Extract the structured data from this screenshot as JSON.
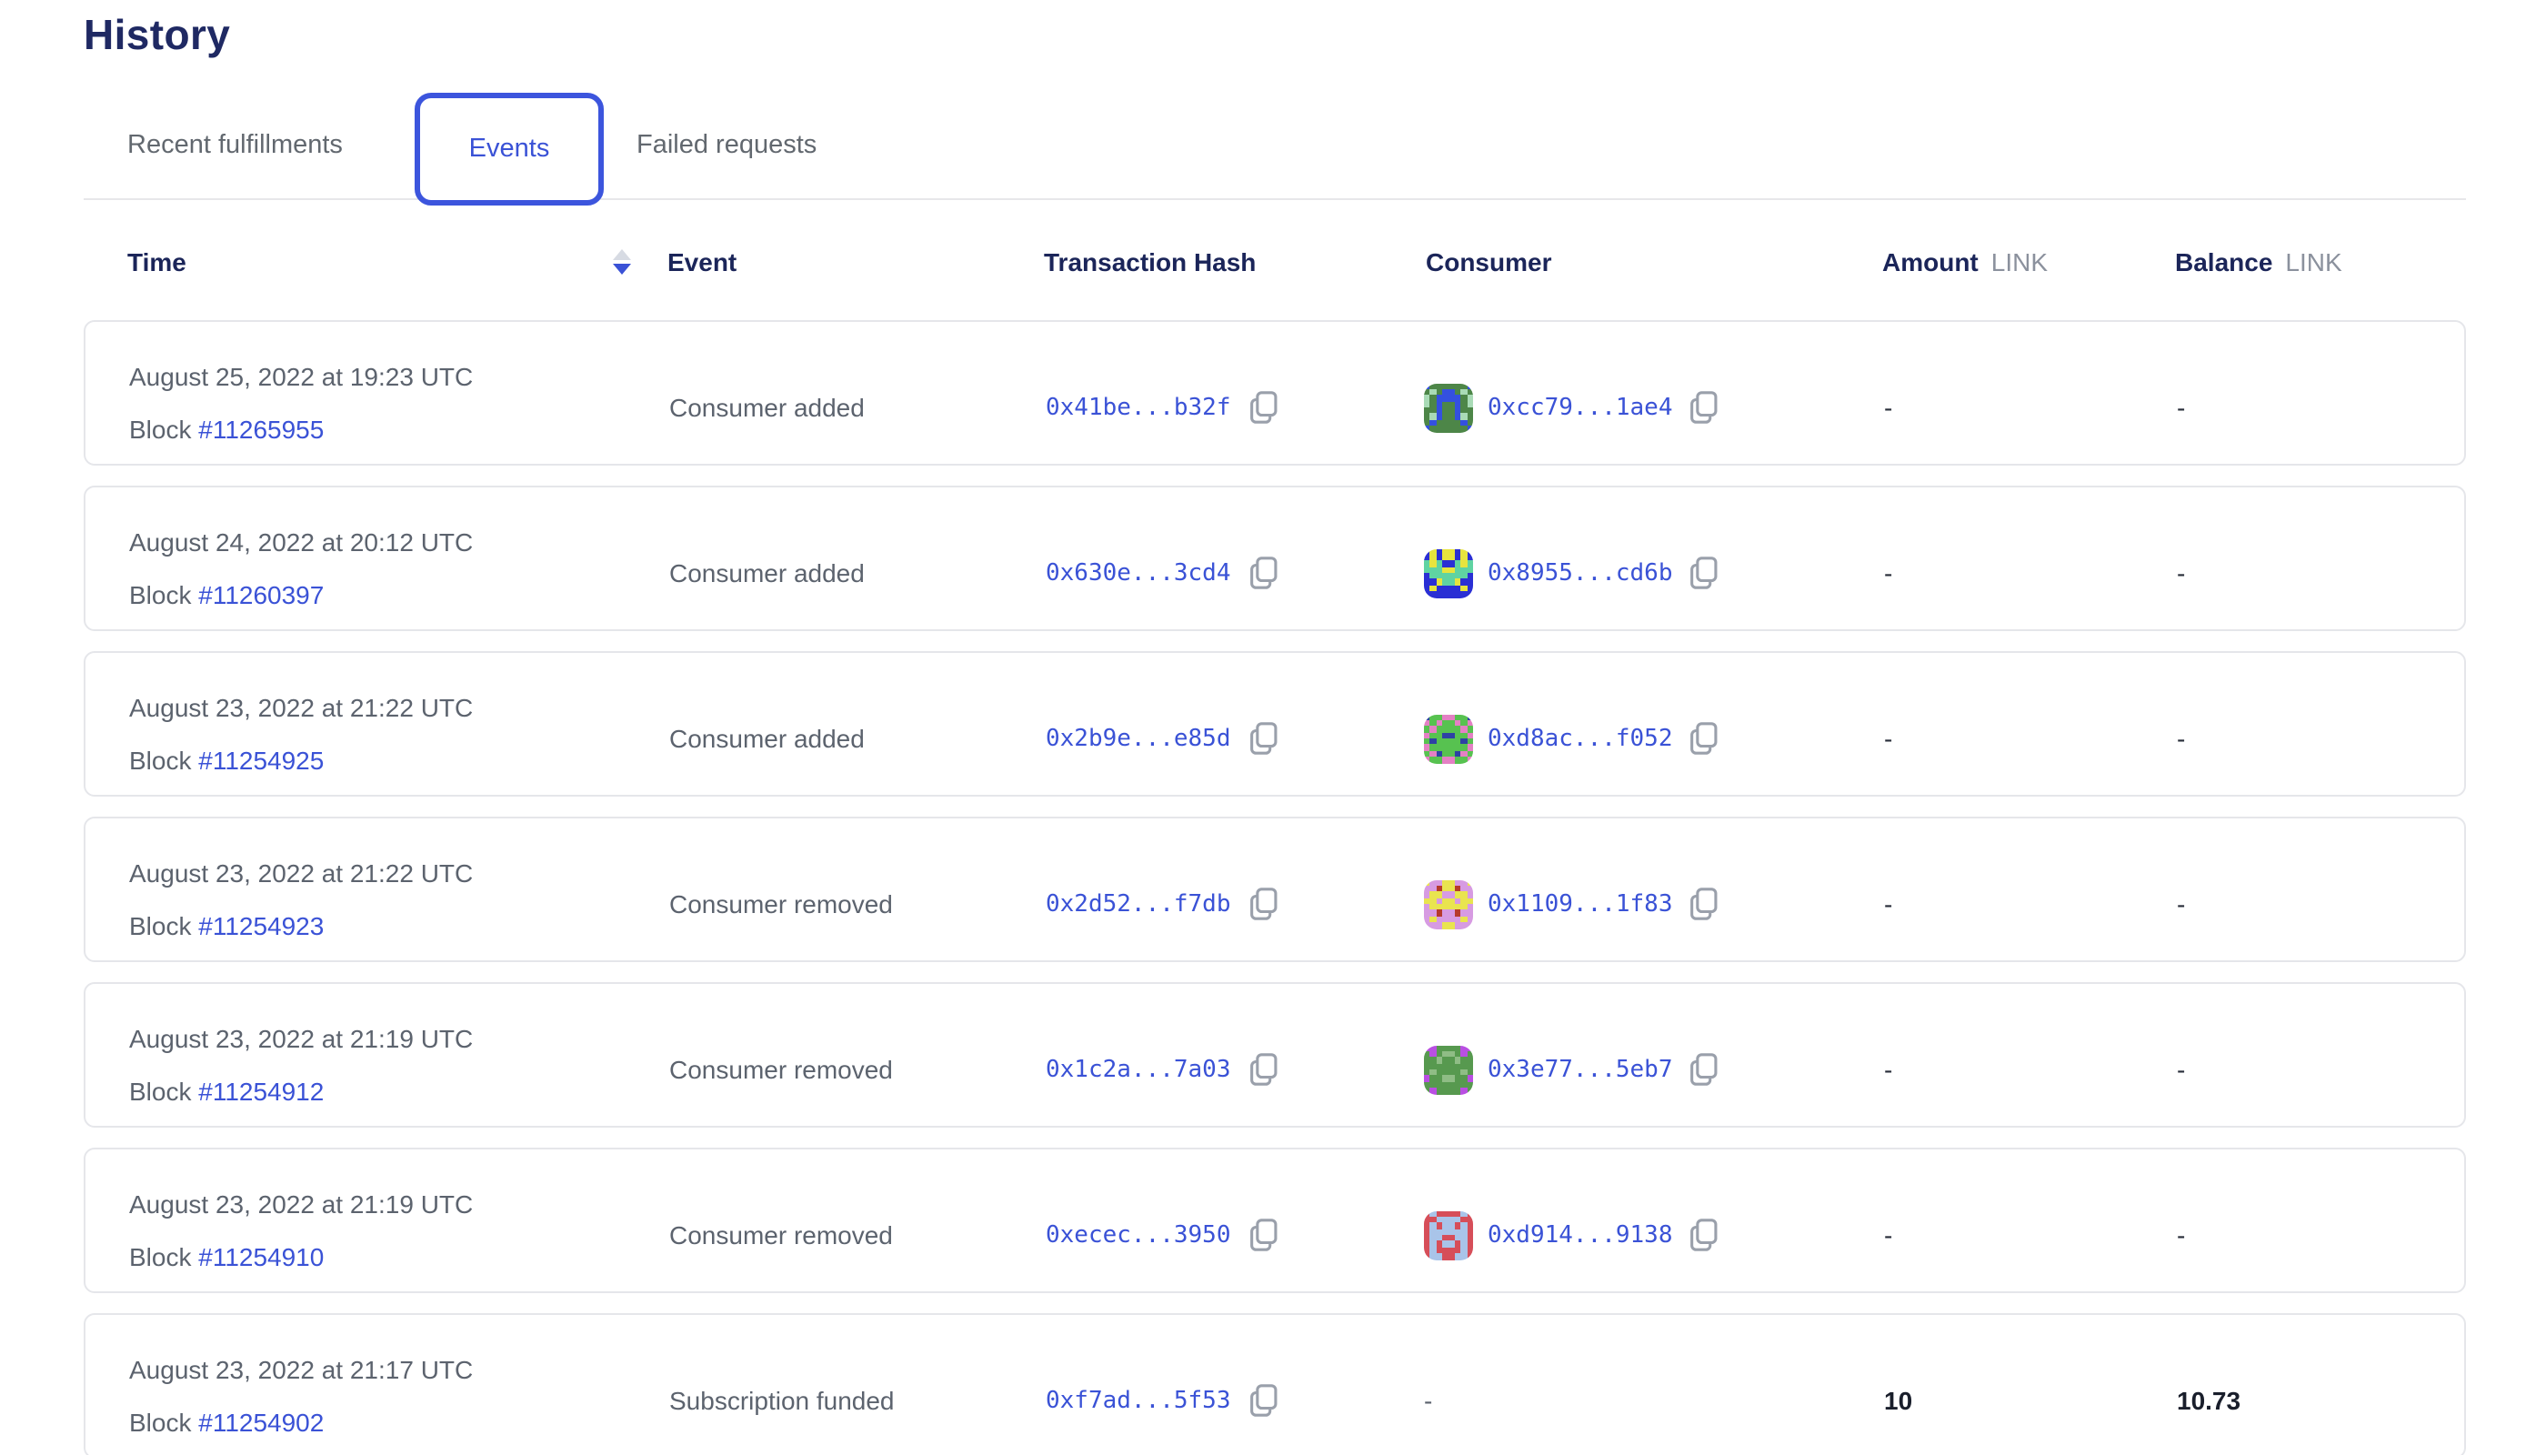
{
  "page": {
    "title": "History"
  },
  "tabs": {
    "items": [
      {
        "label": "Recent fulfillments",
        "active": false
      },
      {
        "label": "Events",
        "active": true
      },
      {
        "label": "Failed requests",
        "active": false
      }
    ]
  },
  "table": {
    "header": {
      "time": "Time",
      "event": "Event",
      "transaction_hash": "Transaction Hash",
      "consumer": "Consumer",
      "amount": "Amount",
      "balance": "Balance",
      "unit": "LINK",
      "sort": {
        "column": "Time",
        "direction": "descending"
      }
    },
    "rows": [
      {
        "date": "August 25, 2022 at 19:23 UTC",
        "block_label": "Block",
        "block_number": "#11265955",
        "event": "Consumer added",
        "tx_hash": "0x41be...b32f",
        "consumer": {
          "address": "0xcc79...1ae4",
          "avatar": {
            "palette": {
              "g": "#4d8648",
              "b": "#3450e0",
              "m": "#a9dbb6"
            },
            "pixels": [
              "bggggggb",
              "gmgbbgmg",
              "mgbbbbgm",
              "mgbggbgm",
              "ggbggbgg",
              "gmbggbmg",
              "gbggggbg",
              "bggggggb"
            ]
          }
        },
        "amount": "-",
        "balance": "-"
      },
      {
        "date": "August 24, 2022 at 20:12 UTC",
        "block_label": "Block",
        "block_number": "#11260397",
        "event": "Consumer added",
        "tx_hash": "0x630e...3cd4",
        "consumer": {
          "address": "0x8955...cd6b",
          "avatar": {
            "palette": {
              "B": "#2a2fd4",
              "Y": "#e7e43e",
              "T": "#5fd3a2"
            },
            "pixels": [
              "BYBYYBYB",
              "BYBYYBYB",
              "TYTBBTYT",
              "TTTYYTTT",
              "BTTTTTTB",
              "BBYTTYBB",
              "BYBBBBYB",
              "BBBBBBBB"
            ]
          }
        },
        "amount": "-",
        "balance": "-"
      },
      {
        "date": "August 23, 2022 at 21:22 UTC",
        "block_label": "Block",
        "block_number": "#11254925",
        "event": "Consumer added",
        "tx_hash": "0x2b9e...e85d",
        "consumer": {
          "address": "0xd8ac...f052",
          "avatar": {
            "palette": {
              "P": "#e480c4",
              "G": "#57c250",
              "N": "#2e42a4"
            },
            "pixels": [
              "NGGPPGGN",
              "PGPGGPGP",
              "GPGGGGPG",
              "PGGNNGGP",
              "GNGGGGNG",
              "PGGGGGGP",
              "GPNGGNPG",
              "PGGPPGGP"
            ]
          }
        },
        "amount": "-",
        "balance": "-"
      },
      {
        "date": "August 23, 2022 at 21:22 UTC",
        "block_label": "Block",
        "block_number": "#11254923",
        "event": "Consumer removed",
        "tx_hash": "0x2d52...f7db",
        "consumer": {
          "address": "0x1109...1f83",
          "avatar": {
            "palette": {
              "V": "#d79be2",
              "Y": "#e9e44f",
              "R": "#b63a2c"
            },
            "pixels": [
              "YVVYYVVY",
              "VVRYYRVV",
              "VYYVVYYV",
              "YYVYYVYY",
              "VYYYYYYV",
              "VVRVVRVV",
              "VYVVVVYV",
              "VVVYYVVV"
            ]
          }
        },
        "amount": "-",
        "balance": "-"
      },
      {
        "date": "August 23, 2022 at 21:19 UTC",
        "block_label": "Block",
        "block_number": "#11254912",
        "event": "Consumer removed",
        "tx_hash": "0x1c2a...7a03",
        "consumer": {
          "address": "0x3e77...5eb7",
          "avatar": {
            "palette": {
              "G": "#57994f",
              "P": "#b94fe2",
              "L": "#8fbd85"
            },
            "pixels": [
              "PPGGGGPP",
              "GPGLLGPG",
              "GGLGGLGG",
              "GGGGGGGG",
              "GLGGGGLG",
              "PGGLLGGP",
              "GGGGGGGG",
              "GPGGGGPG"
            ]
          }
        },
        "amount": "-",
        "balance": "-"
      },
      {
        "date": "August 23, 2022 at 21:19 UTC",
        "block_label": "Block",
        "block_number": "#11254910",
        "event": "Consumer removed",
        "tx_hash": "0xecec...3950",
        "consumer": {
          "address": "0xd914...9138",
          "avatar": {
            "palette": {
              "R": "#d64e59",
              "L": "#a9c4e9"
            },
            "pixels": [
              "RLRRRRLR",
              "RRLLLLRR",
              "RLRLLRLR",
              "RLLLLLLR",
              "RLLRRLLR",
              "RLRLLRLR",
              "RLRRRRLR",
              "RLLRRLLR"
            ]
          }
        },
        "amount": "-",
        "balance": "-"
      },
      {
        "date": "August 23, 2022 at 21:17 UTC",
        "block_label": "Block",
        "block_number": "#11254902",
        "event": "Subscription funded",
        "tx_hash": "0xf7ad...5f53",
        "consumer": null,
        "consumer_placeholder": "-",
        "amount": "10",
        "balance": "10.73",
        "value_strong": true
      }
    ]
  },
  "colors": {
    "accent_blue": "#3a52d6",
    "heading_navy": "#1f2963",
    "header_text": "#1b2559",
    "muted_gray": "#5c636e",
    "unit_gray": "#8b919d",
    "card_border": "#e5e6ea",
    "icon_gray": "#9aa0ab"
  },
  "icons": {
    "copy": "copy-icon",
    "sort": "sort-descending-icon"
  }
}
